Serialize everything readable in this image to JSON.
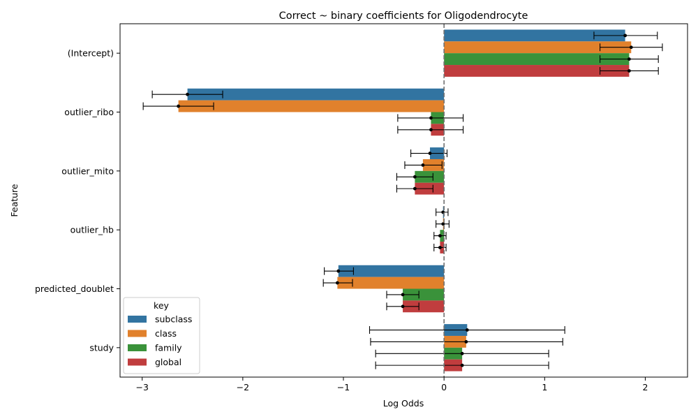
{
  "chart_data": {
    "type": "bar",
    "orientation": "horizontal",
    "title": "Correct ~ binary coefficients for Oligodendrocyte",
    "xlabel": "Log Odds",
    "ylabel": "Feature",
    "xlim": [
      -3.22,
      2.42
    ],
    "xticks": [
      -3,
      -2,
      -1,
      0,
      1,
      2
    ],
    "reference_line": 0,
    "categories": [
      "(Intercept)",
      "outlier_ribo",
      "outlier_mito",
      "outlier_hb",
      "predicted_doublet",
      "study"
    ],
    "legend_title": "key",
    "legend_position": "lower-left",
    "series": [
      {
        "name": "subclass",
        "color": "#3274a1",
        "values": [
          1.8,
          -2.55,
          -0.14,
          -0.01,
          -1.05,
          0.23
        ],
        "ci_low": [
          1.49,
          -2.9,
          -0.33,
          -0.08,
          -1.19,
          -0.74
        ],
        "ci_high": [
          2.12,
          -2.2,
          0.03,
          0.04,
          -0.9,
          1.2
        ]
      },
      {
        "name": "class",
        "color": "#e1812c",
        "values": [
          1.86,
          -2.64,
          -0.21,
          -0.01,
          -1.06,
          0.22
        ],
        "ci_low": [
          1.55,
          -2.99,
          -0.39,
          -0.08,
          -1.2,
          -0.73
        ],
        "ci_high": [
          2.17,
          -2.29,
          -0.02,
          0.05,
          -0.91,
          1.18
        ]
      },
      {
        "name": "family",
        "color": "#3a923a",
        "values": [
          1.84,
          -0.13,
          -0.29,
          -0.04,
          -0.41,
          0.18
        ],
        "ci_low": [
          1.55,
          -0.46,
          -0.47,
          -0.1,
          -0.57,
          -0.68
        ],
        "ci_high": [
          2.13,
          0.19,
          -0.11,
          0.02,
          -0.25,
          1.04
        ]
      },
      {
        "name": "global",
        "color": "#c03d3e",
        "values": [
          1.84,
          -0.13,
          -0.29,
          -0.04,
          -0.41,
          0.18
        ],
        "ci_low": [
          1.55,
          -0.46,
          -0.47,
          -0.1,
          -0.57,
          -0.68
        ],
        "ci_high": [
          2.13,
          0.19,
          -0.11,
          0.02,
          -0.25,
          1.04
        ]
      }
    ]
  }
}
